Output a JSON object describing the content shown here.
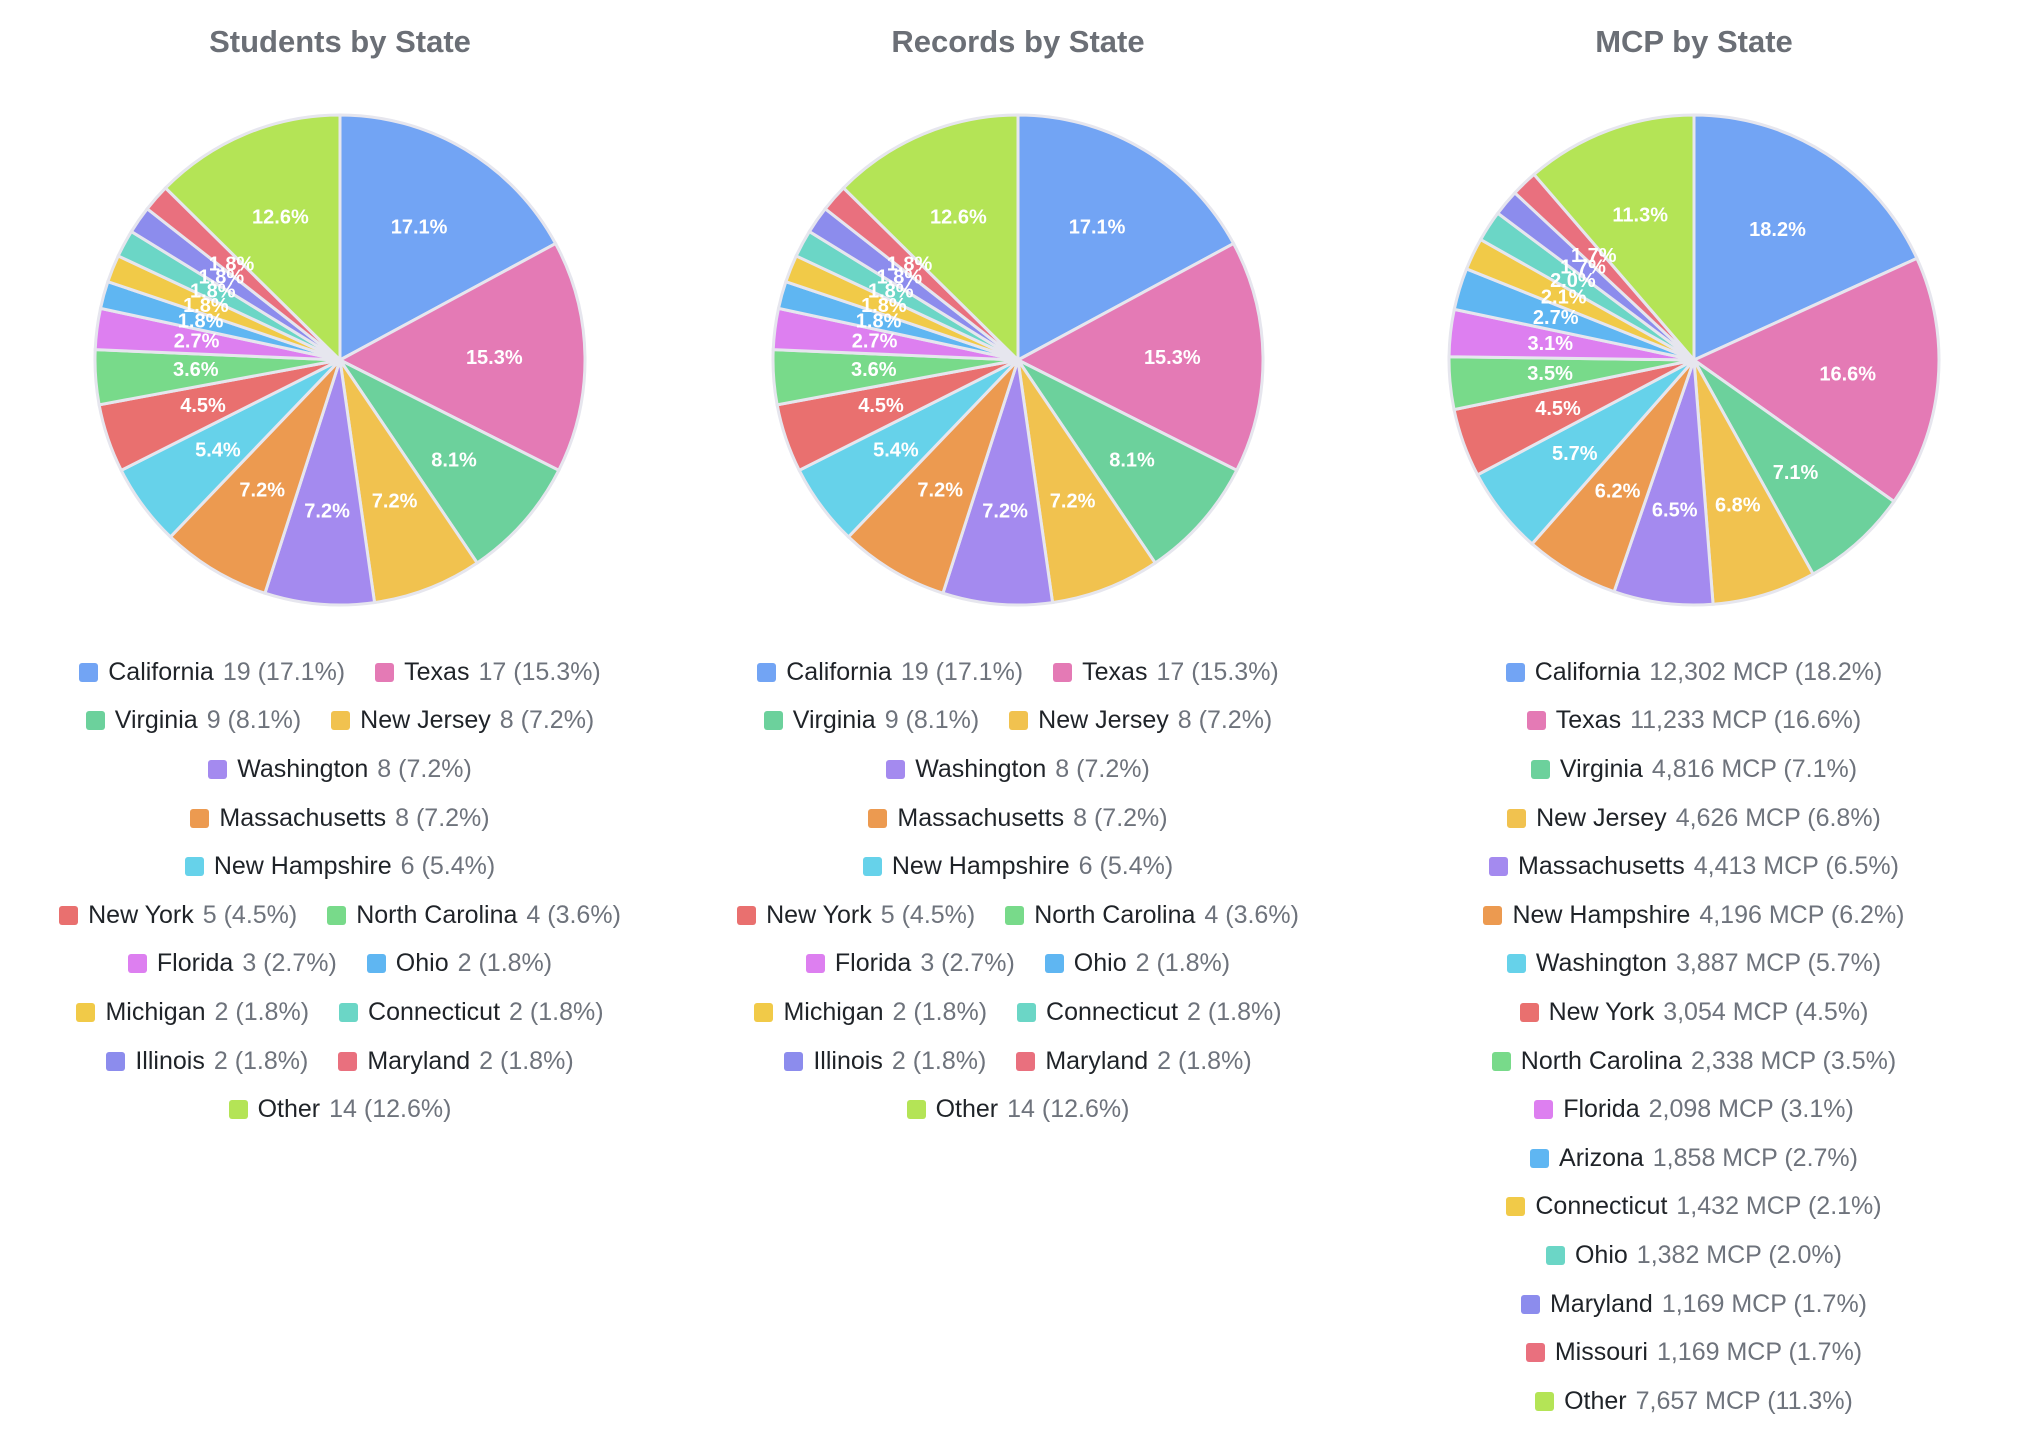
{
  "chart_data": [
    {
      "type": "pie",
      "title": "Students by State",
      "categories": [
        "California",
        "Texas",
        "Virginia",
        "New Jersey",
        "Washington",
        "Massachusetts",
        "New Hampshire",
        "New York",
        "North Carolina",
        "Florida",
        "Ohio",
        "Michigan",
        "Connecticut",
        "Illinois",
        "Maryland",
        "Other"
      ],
      "values": [
        19,
        17,
        9,
        8,
        8,
        8,
        6,
        5,
        4,
        3,
        2,
        2,
        2,
        2,
        2,
        14
      ],
      "percents": [
        "17.1%",
        "15.3%",
        "8.1%",
        "7.2%",
        "7.2%",
        "7.2%",
        "5.4%",
        "4.5%",
        "3.6%",
        "2.7%",
        "1.8%",
        "1.8%",
        "1.8%",
        "1.8%",
        "1.8%",
        "12.6%"
      ],
      "slice_labels": [
        "17.1%",
        "15.3%",
        "8.1%",
        "7.2%",
        "7.2%",
        "7.2%",
        "5.4%",
        "4.5%",
        "3.6%",
        "2.7%",
        "1.8%",
        "1.8%",
        "1.8%",
        "1.8%",
        "1.8%",
        "12.6%"
      ],
      "legend_values": [
        "19 (17.1%)",
        "17 (15.3%)",
        "9 (8.1%)",
        "8 (7.2%)",
        "8 (7.2%)",
        "8 (7.2%)",
        "6 (5.4%)",
        "5 (4.5%)",
        "4 (3.6%)",
        "3 (2.7%)",
        "2 (1.8%)",
        "2 (1.8%)",
        "2 (1.8%)",
        "2 (1.8%)",
        "2 (1.8%)",
        "14 (12.6%)"
      ],
      "colors": [
        "#72a4f4",
        "#e47ab5",
        "#6cd19c",
        "#f1c24f",
        "#a48aef",
        "#ec9a50",
        "#66d2ea",
        "#e9706f",
        "#78da8a",
        "#dd7ff0",
        "#5fb6f2",
        "#f1ca48",
        "#6bd6c6",
        "#8c8ced",
        "#e9707e",
        "#b4e456"
      ],
      "legend_rows": [
        [
          0,
          1
        ],
        [
          2,
          3
        ],
        [
          4
        ],
        [
          5
        ],
        [
          6
        ],
        [
          7,
          8
        ],
        [
          9,
          10
        ],
        [
          11,
          12
        ],
        [
          13,
          14
        ],
        [
          15
        ]
      ]
    },
    {
      "type": "pie",
      "title": "Records by State",
      "categories": [
        "California",
        "Texas",
        "Virginia",
        "New Jersey",
        "Washington",
        "Massachusetts",
        "New Hampshire",
        "New York",
        "North Carolina",
        "Florida",
        "Ohio",
        "Michigan",
        "Connecticut",
        "Illinois",
        "Maryland",
        "Other"
      ],
      "values": [
        19,
        17,
        9,
        8,
        8,
        8,
        6,
        5,
        4,
        3,
        2,
        2,
        2,
        2,
        2,
        14
      ],
      "percents": [
        "17.1%",
        "15.3%",
        "8.1%",
        "7.2%",
        "7.2%",
        "7.2%",
        "5.4%",
        "4.5%",
        "3.6%",
        "2.7%",
        "1.8%",
        "1.8%",
        "1.8%",
        "1.8%",
        "1.8%",
        "12.6%"
      ],
      "slice_labels": [
        "17.1%",
        "15.3%",
        "8.1%",
        "7.2%",
        "7.2%",
        "7.2%",
        "5.4%",
        "4.5%",
        "3.6%",
        "2.7%",
        "1.8%",
        "1.8%",
        "1.8%",
        "1.8%",
        "1.8%",
        "12.6%"
      ],
      "legend_values": [
        "19 (17.1%)",
        "17 (15.3%)",
        "9 (8.1%)",
        "8 (7.2%)",
        "8 (7.2%)",
        "8 (7.2%)",
        "6 (5.4%)",
        "5 (4.5%)",
        "4 (3.6%)",
        "3 (2.7%)",
        "2 (1.8%)",
        "2 (1.8%)",
        "2 (1.8%)",
        "2 (1.8%)",
        "2 (1.8%)",
        "14 (12.6%)"
      ],
      "colors": [
        "#72a4f4",
        "#e47ab5",
        "#6cd19c",
        "#f1c24f",
        "#a48aef",
        "#ec9a50",
        "#66d2ea",
        "#e9706f",
        "#78da8a",
        "#dd7ff0",
        "#5fb6f2",
        "#f1ca48",
        "#6bd6c6",
        "#8c8ced",
        "#e9707e",
        "#b4e456"
      ],
      "legend_rows": [
        [
          0,
          1
        ],
        [
          2,
          3
        ],
        [
          4
        ],
        [
          5
        ],
        [
          6
        ],
        [
          7,
          8
        ],
        [
          9,
          10
        ],
        [
          11,
          12
        ],
        [
          13,
          14
        ],
        [
          15
        ]
      ]
    },
    {
      "type": "pie",
      "title": "MCP by State",
      "categories": [
        "California",
        "Texas",
        "Virginia",
        "New Jersey",
        "Massachusetts",
        "New Hampshire",
        "Washington",
        "New York",
        "North Carolina",
        "Florida",
        "Arizona",
        "Connecticut",
        "Ohio",
        "Maryland",
        "Missouri",
        "Other"
      ],
      "values": [
        12302,
        11233,
        4816,
        4626,
        4413,
        4196,
        3887,
        3054,
        2338,
        2098,
        1858,
        1432,
        1382,
        1169,
        1169,
        7657
      ],
      "unit": "MCP",
      "percents": [
        "18.2%",
        "16.6%",
        "7.1%",
        "6.8%",
        "6.5%",
        "6.2%",
        "5.7%",
        "4.5%",
        "3.5%",
        "3.1%",
        "2.7%",
        "2.1%",
        "2.0%",
        "1.7%",
        "1.7%",
        "11.3%"
      ],
      "slice_labels": [
        "18.2%",
        "16.6%",
        "7.1%",
        "6.8%",
        "6.5%",
        "6.2%",
        "5.7%",
        "4.5%",
        "3.5%",
        "3.1%",
        "2.7%",
        "2.1%",
        "2.0%",
        "1.7%",
        "1.7%",
        "11.3%"
      ],
      "legend_values": [
        "12,302 MCP (18.2%)",
        "11,233 MCP (16.6%)",
        "4,816 MCP (7.1%)",
        "4,626 MCP (6.8%)",
        "4,413 MCP (6.5%)",
        "4,196 MCP (6.2%)",
        "3,887 MCP (5.7%)",
        "3,054 MCP (4.5%)",
        "2,338 MCP (3.5%)",
        "2,098 MCP (3.1%)",
        "1,858 MCP (2.7%)",
        "1,432 MCP (2.1%)",
        "1,382 MCP (2.0%)",
        "1,169 MCP (1.7%)",
        "1,169 MCP (1.7%)",
        "7,657 MCP (11.3%)"
      ],
      "colors": [
        "#72a4f4",
        "#e47ab5",
        "#6cd19c",
        "#f1c24f",
        "#a48aef",
        "#ec9a50",
        "#66d2ea",
        "#e9706f",
        "#78da8a",
        "#dd7ff0",
        "#5fb6f2",
        "#f1ca48",
        "#6bd6c6",
        "#8c8ced",
        "#e9707e",
        "#b4e456"
      ],
      "legend_rows": [
        [
          0
        ],
        [
          1
        ],
        [
          2
        ],
        [
          3
        ],
        [
          4
        ],
        [
          5
        ],
        [
          6
        ],
        [
          7
        ],
        [
          8
        ],
        [
          9
        ],
        [
          10
        ],
        [
          11
        ],
        [
          12
        ],
        [
          13
        ],
        [
          14
        ],
        [
          15
        ]
      ]
    }
  ]
}
